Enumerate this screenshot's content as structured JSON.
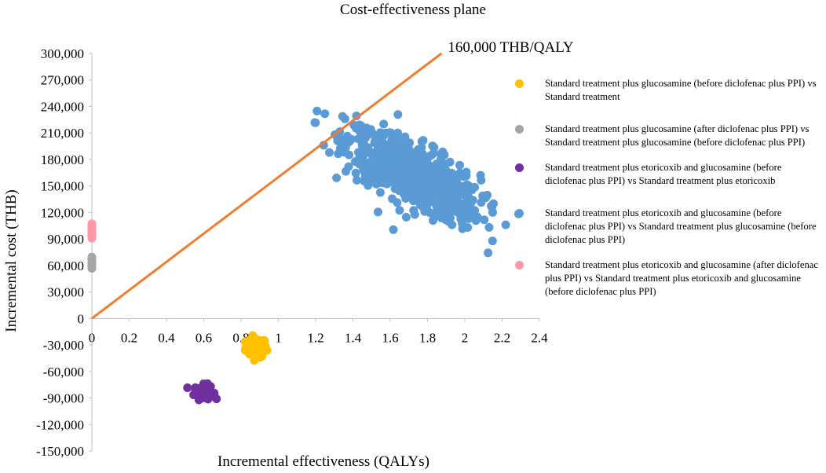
{
  "chart_data": {
    "type": "scatter",
    "title": "Cost-effectiveness plane",
    "xlabel": "Incremental effectiveness (QALYs)",
    "ylabel": "Incremental cost (THB)",
    "xlim": [
      0,
      2.4
    ],
    "ylim": [
      -150000,
      300000
    ],
    "x_ticks": [
      "0",
      "0.2",
      "0.4",
      "0.6",
      "0.8",
      "1",
      "1.2",
      "1.4",
      "1.6",
      "1.8",
      "2",
      "2.2",
      "2.4"
    ],
    "y_ticks": [
      "300,000",
      "270,000",
      "240,000",
      "210,000",
      "180,000",
      "150,000",
      "120,000",
      "90,000",
      "60,000",
      "30,000",
      "0",
      "-30,000",
      "-60,000",
      "-90,000",
      "-120,000",
      "-150,000"
    ],
    "threshold": {
      "label": "160,000 THB/QALY",
      "slope": 160000,
      "color": "#ed7d31"
    },
    "series": [
      {
        "name": "Standard treatment plus glucosamine (before diclofenac plus PPI) vs Standard treatment",
        "color": "#ffc000",
        "center": [
          0.88,
          -33000
        ],
        "spread": [
          0.028,
          5500
        ],
        "n": 90
      },
      {
        "name": "Standard treatment plus glucosamine (after diclofenac plus PPI) vs Standard treatment plus glucosamine (before diclofenac plus PPI)",
        "color": "#a5a5a5",
        "center": [
          0.0,
          62000
        ],
        "spread": [
          0.0,
          3500
        ],
        "n": 40
      },
      {
        "name": "Standard treatment plus etoricoxib and glucosamine (before diclofenac plus PPI) vs Standard treatment plus etoricoxib",
        "color": "#7030a0",
        "center": [
          0.6,
          -83000
        ],
        "spread": [
          0.025,
          4000
        ],
        "n": 80
      },
      {
        "name": "Standard treatment plus etoricoxib and glucosamine (before diclofenac plus PPI) vs Standard treatment plus glucosamine (before diclofenac plus PPI)",
        "color": "#5b9bd5",
        "center": [
          1.72,
          163000
        ],
        "spread": [
          0.18,
          26000
        ],
        "n": 700
      },
      {
        "name": "Standard treatment plus etoricoxib and glucosamine (after diclofenac plus PPI) vs Standard treatment plus etoricoxib and glucosamine (before diclofenac plus PPI)",
        "color": "#ff99aa",
        "center": [
          0.0,
          100000
        ],
        "spread": [
          0.0,
          3500
        ],
        "n": 40
      }
    ]
  }
}
